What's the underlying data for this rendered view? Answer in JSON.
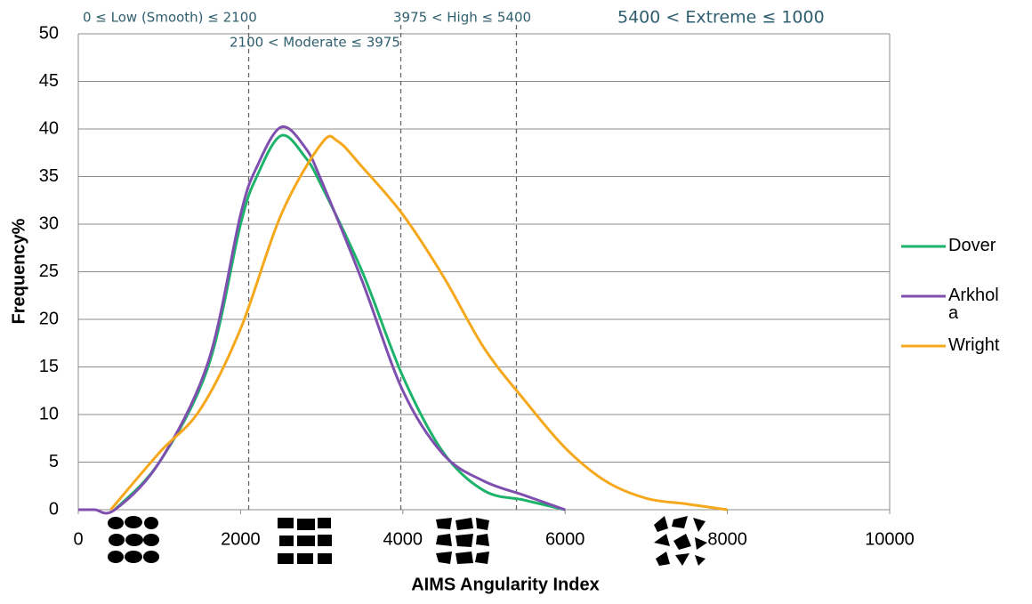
{
  "chart_data": {
    "type": "line",
    "xlabel": "AIMS Angularity Index",
    "ylabel": "Frequency%",
    "xlim": [
      0,
      10000
    ],
    "xticks": [
      0,
      2000,
      4000,
      6000,
      8000,
      10000
    ],
    "ylim": [
      0,
      50
    ],
    "yticks": [
      0,
      5,
      10,
      15,
      20,
      25,
      30,
      35,
      40,
      45,
      50
    ],
    "grid": true,
    "legend": "right",
    "thresholds": [
      2100,
      3975,
      5400
    ],
    "annotations": [
      "0 ≤ Low (Smooth) ≤ 2100",
      "2100 < Moderate ≤ 3975",
      "3975 < High ≤ 5400",
      "5400 < Extreme ≤ 1000"
    ],
    "series": [
      {
        "name": "Dover",
        "color": "#1db36b",
        "x": [
          450,
          1000,
          1600,
          2000,
          2200,
          2500,
          2800,
          3000,
          3500,
          4000,
          4500,
          5000,
          5500,
          6000
        ],
        "values": [
          0,
          5,
          15,
          30,
          35,
          39.3,
          37,
          34,
          25,
          14,
          6,
          2,
          1,
          0
        ]
      },
      {
        "name": "Arkhola",
        "color": "#7f4fb0",
        "x": [
          0,
          200,
          450,
          1000,
          1600,
          2000,
          2200,
          2500,
          2800,
          3000,
          3500,
          4000,
          4500,
          5000,
          5500,
          6000
        ],
        "values": [
          0,
          0,
          0,
          5,
          15.5,
          31,
          36,
          40.2,
          38,
          34.5,
          24,
          12.5,
          5.8,
          3,
          1.5,
          0
        ]
      },
      {
        "name": "Wright",
        "color": "#f5a81c",
        "x": [
          400,
          1000,
          1500,
          2000,
          2500,
          3000,
          3200,
          3500,
          4000,
          4500,
          5000,
          5500,
          6000,
          6500,
          7000,
          7500,
          8000
        ],
        "values": [
          0,
          6,
          10.5,
          19,
          31,
          38.5,
          38.7,
          36,
          31,
          24.5,
          17,
          11.5,
          6.5,
          3,
          1.2,
          0.6,
          0
        ]
      }
    ]
  }
}
